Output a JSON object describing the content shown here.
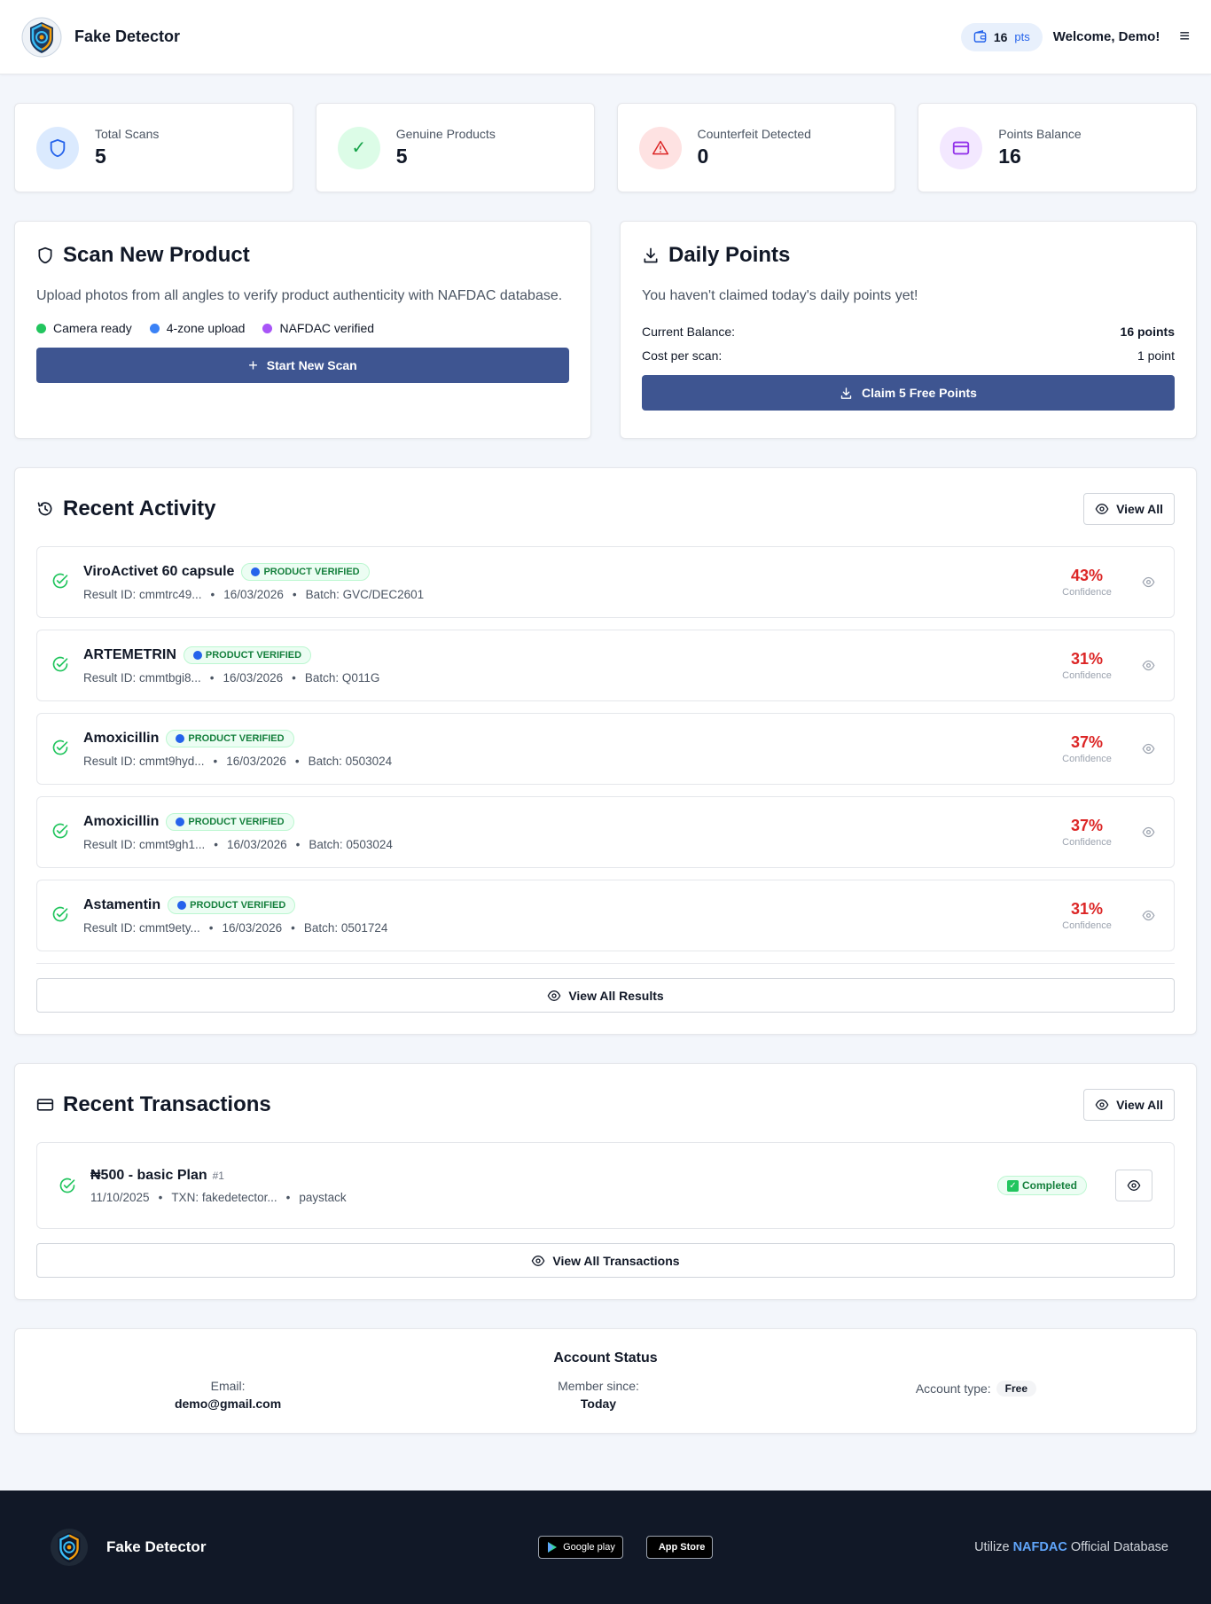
{
  "header": {
    "brand": "Fake Detector",
    "points_value": "16",
    "points_unit": "pts",
    "welcome": "Welcome, Demo!"
  },
  "stats": [
    {
      "label": "Total Scans",
      "value": "5",
      "icon": "shield-icon",
      "color": "#2563eb"
    },
    {
      "label": "Genuine Products",
      "value": "5",
      "icon": "check-icon",
      "color": "#16a34a"
    },
    {
      "label": "Counterfeit Detected",
      "value": "0",
      "icon": "warning-icon",
      "color": "#dc2626"
    },
    {
      "label": "Points Balance",
      "value": "16",
      "icon": "card-icon",
      "color": "#9333ea"
    }
  ],
  "scan": {
    "title": "Scan New Product",
    "description": "Upload photos from all angles to verify product authenticity with NAFDAC database.",
    "features": [
      {
        "label": "Camera ready",
        "color": "#22c55e"
      },
      {
        "label": "4-zone upload",
        "color": "#3b82f6"
      },
      {
        "label": "NAFDAC verified",
        "color": "#a855f7"
      }
    ],
    "button": "Start New Scan"
  },
  "daily": {
    "title": "Daily Points",
    "message": "You haven't claimed today's daily points yet!",
    "balance_label": "Current Balance:",
    "balance_value": "16 points",
    "cost_label": "Cost per scan:",
    "cost_value": "1 point",
    "button": "Claim 5 Free Points"
  },
  "activity": {
    "title": "Recent Activity",
    "view_all": "View All",
    "badge": "PRODUCT VERIFIED",
    "confidence_label": "Confidence",
    "items": [
      {
        "name": "ViroActivet 60 capsule",
        "result": "Result ID: cmmtrc49...",
        "date": "16/03/2026",
        "batch": "Batch: GVC/DEC2601",
        "confidence": "43%"
      },
      {
        "name": "ARTEMETRIN",
        "result": "Result ID: cmmtbgi8...",
        "date": "16/03/2026",
        "batch": "Batch: Q011G",
        "confidence": "31%"
      },
      {
        "name": "Amoxicillin",
        "result": "Result ID: cmmt9hyd...",
        "date": "16/03/2026",
        "batch": "Batch: 0503024",
        "confidence": "37%"
      },
      {
        "name": "Amoxicillin",
        "result": "Result ID: cmmt9gh1...",
        "date": "16/03/2026",
        "batch": "Batch: 0503024",
        "confidence": "37%"
      },
      {
        "name": "Astamentin",
        "result": "Result ID: cmmt9ety...",
        "date": "16/03/2026",
        "batch": "Batch: 0501724",
        "confidence": "31%"
      }
    ],
    "view_all_results": "View All Results"
  },
  "transactions": {
    "title": "Recent Transactions",
    "view_all": "View All",
    "items": [
      {
        "title": "₦500 - basic Plan",
        "id": "#1",
        "date": "11/10/2025",
        "txn": "TXN: fakedetector...",
        "method": "paystack",
        "status": "Completed"
      }
    ],
    "view_all_transactions": "View All Transactions"
  },
  "account": {
    "title": "Account Status",
    "email_label": "Email:",
    "email_value": "demo@gmail.com",
    "member_label": "Member since:",
    "member_value": "Today",
    "type_label": "Account type:",
    "type_value": "Free"
  },
  "footer": {
    "brand": "Fake Detector",
    "google_play": "Google play",
    "app_store": "App Store",
    "text_prefix": "Utilize",
    "text_highlight": "NAFDAC",
    "text_suffix": "Official Database"
  }
}
